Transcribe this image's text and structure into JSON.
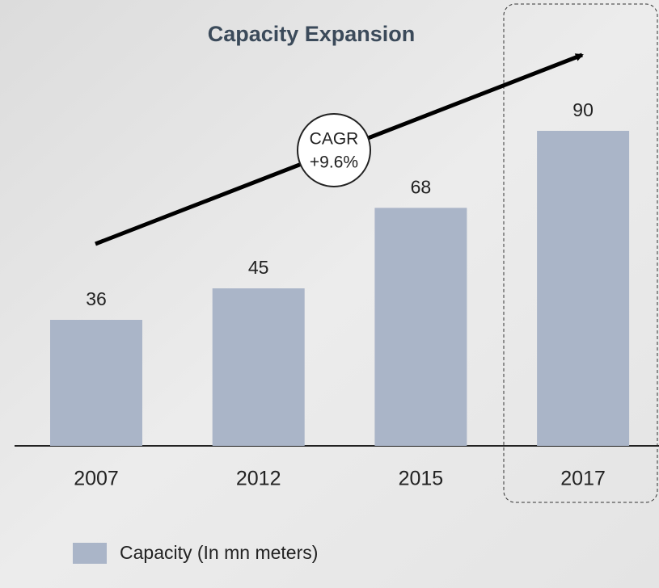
{
  "chart_data": {
    "type": "bar",
    "title": "Capacity Expansion",
    "categories": [
      "2007",
      "2012",
      "2015",
      "2017"
    ],
    "series": [
      {
        "name": "Capacity (In mn meters)",
        "color": "#aab5c8",
        "values": [
          36,
          45,
          68,
          90
        ]
      }
    ],
    "annotation": [
      "CAGR",
      "+9.6%"
    ]
  }
}
